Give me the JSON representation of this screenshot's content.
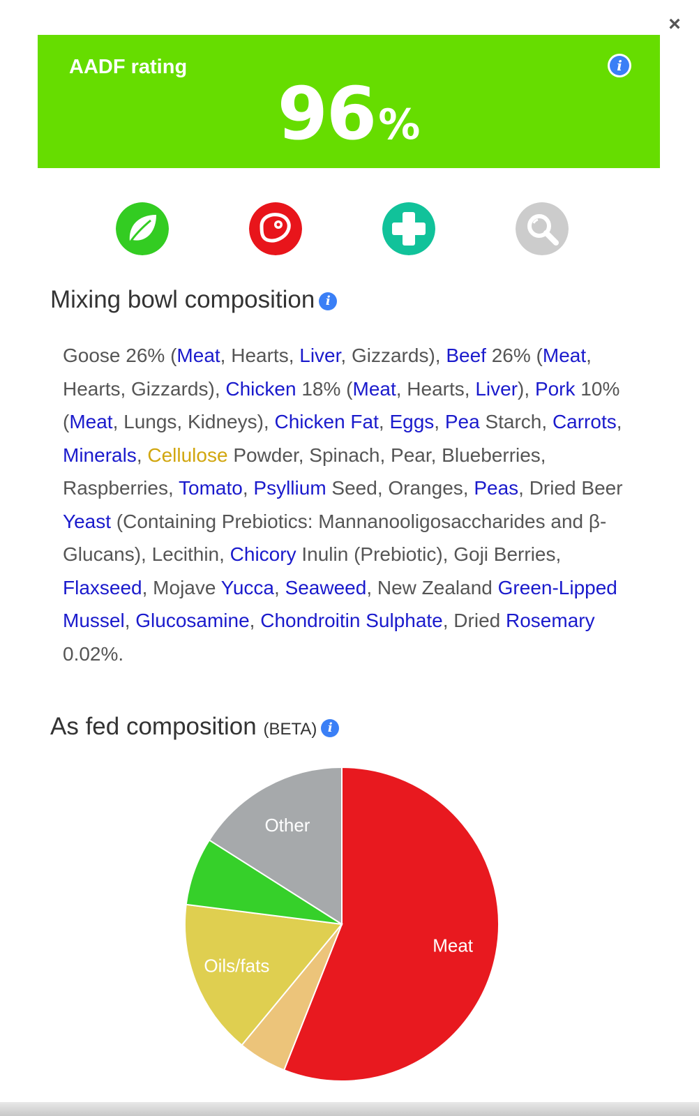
{
  "close_label": "×",
  "rating": {
    "label": "AADF rating",
    "value": "96",
    "unit": "%",
    "color": "#66dd00",
    "info_icon": "i"
  },
  "badges": [
    {
      "icon": "leaf-icon",
      "color": "#33cc22"
    },
    {
      "icon": "meat-icon",
      "color": "#e8151b"
    },
    {
      "icon": "health-cross-icon",
      "color": "#11c29a"
    },
    {
      "icon": "search-icon",
      "color": "#cccccc"
    }
  ],
  "mixing": {
    "title": "Mixing bowl composition",
    "info_icon": "i",
    "segments": [
      {
        "text": "Goose 26% (",
        "type": "plain"
      },
      {
        "text": "Meat",
        "type": "link"
      },
      {
        "text": ", Hearts, ",
        "type": "plain"
      },
      {
        "text": "Liver",
        "type": "link"
      },
      {
        "text": ", Gizzards), ",
        "type": "plain"
      },
      {
        "text": "Beef",
        "type": "link"
      },
      {
        "text": " 26% (",
        "type": "plain"
      },
      {
        "text": "Meat",
        "type": "link"
      },
      {
        "text": ", Hearts, Gizzards), ",
        "type": "plain"
      },
      {
        "text": "Chicken",
        "type": "link"
      },
      {
        "text": " 18% (",
        "type": "plain"
      },
      {
        "text": "Meat",
        "type": "link"
      },
      {
        "text": ", Hearts, ",
        "type": "plain"
      },
      {
        "text": "Liver",
        "type": "link"
      },
      {
        "text": "), ",
        "type": "plain"
      },
      {
        "text": "Pork",
        "type": "link"
      },
      {
        "text": " 10% (",
        "type": "plain"
      },
      {
        "text": "Meat",
        "type": "link"
      },
      {
        "text": ", Lungs, Kidneys), ",
        "type": "plain"
      },
      {
        "text": "Chicken Fat",
        "type": "link"
      },
      {
        "text": ", ",
        "type": "plain"
      },
      {
        "text": "Eggs",
        "type": "link"
      },
      {
        "text": ", ",
        "type": "plain"
      },
      {
        "text": "Pea",
        "type": "link"
      },
      {
        "text": " Starch, ",
        "type": "plain"
      },
      {
        "text": "Carrots",
        "type": "link"
      },
      {
        "text": ", ",
        "type": "plain"
      },
      {
        "text": "Minerals",
        "type": "link"
      },
      {
        "text": ", ",
        "type": "plain"
      },
      {
        "text": "Cellulose",
        "type": "alert"
      },
      {
        "text": " Powder, Spinach, Pear, Blueberries, Raspberries, ",
        "type": "plain"
      },
      {
        "text": "Tomato",
        "type": "link"
      },
      {
        "text": ", ",
        "type": "plain"
      },
      {
        "text": "Psyllium",
        "type": "link"
      },
      {
        "text": " Seed, Oranges, ",
        "type": "plain"
      },
      {
        "text": "Peas",
        "type": "link"
      },
      {
        "text": ", Dried Beer ",
        "type": "plain"
      },
      {
        "text": "Yeast",
        "type": "link"
      },
      {
        "text": " (Containing Prebiotics: Mannanooligosaccharides and β-Glucans), Lecithin, ",
        "type": "plain"
      },
      {
        "text": "Chicory",
        "type": "link"
      },
      {
        "text": " Inulin (Prebiotic), Goji Berries, ",
        "type": "plain"
      },
      {
        "text": "Flaxseed",
        "type": "link"
      },
      {
        "text": ", Mojave ",
        "type": "plain"
      },
      {
        "text": "Yucca",
        "type": "link"
      },
      {
        "text": ", ",
        "type": "plain"
      },
      {
        "text": "Seaweed",
        "type": "link"
      },
      {
        "text": ", New Zealand ",
        "type": "plain"
      },
      {
        "text": "Green-Lipped Mussel",
        "type": "link"
      },
      {
        "text": ", ",
        "type": "plain"
      },
      {
        "text": "Glucosamine",
        "type": "link"
      },
      {
        "text": ", ",
        "type": "plain"
      },
      {
        "text": "Chondroitin Sulphate",
        "type": "link"
      },
      {
        "text": ", Dried ",
        "type": "plain"
      },
      {
        "text": "Rosemary",
        "type": "link"
      },
      {
        "text": " 0.02%.",
        "type": "plain"
      }
    ]
  },
  "as_fed": {
    "title": "As fed composition",
    "beta": "(BETA)",
    "info_icon": "i"
  },
  "chart_data": {
    "type": "pie",
    "start": "top",
    "direction": "clockwise",
    "slices": [
      {
        "label": "Meat",
        "value": 56,
        "color": "#e8191f"
      },
      {
        "label": "",
        "value": 5,
        "color": "#ecc47a"
      },
      {
        "label": "Oils/fats",
        "value": 16,
        "color": "#dfcf50"
      },
      {
        "label": "",
        "value": 7,
        "color": "#36d02a"
      },
      {
        "label": "Other",
        "value": 16,
        "color": "#a6a9ab"
      }
    ]
  }
}
